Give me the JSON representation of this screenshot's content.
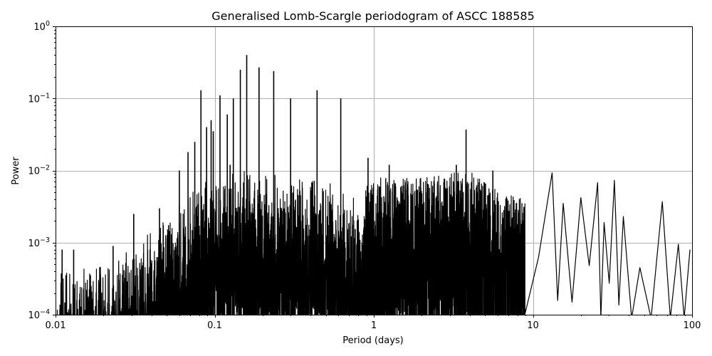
{
  "chart_data": {
    "type": "line",
    "title": "Generalised Lomb-Scargle periodogram of ASCC 188585",
    "xlabel": "Period (days)",
    "ylabel": "Power",
    "xscale": "log",
    "yscale": "log",
    "xlim": [
      0.01,
      100
    ],
    "ylim": [
      0.0001,
      1
    ],
    "grid": true,
    "legend": null,
    "line_color": "#000000",
    "grid_color": "#b0b0b0",
    "x_ticks": [
      {
        "value": 0.01,
        "label": "0.01"
      },
      {
        "value": 0.1,
        "label": "0.1"
      },
      {
        "value": 1,
        "label": "1"
      },
      {
        "value": 10,
        "label": "10"
      },
      {
        "value": 100,
        "label": "100"
      }
    ],
    "y_ticks": [
      {
        "value": 1,
        "base": "10",
        "exp": "0"
      },
      {
        "value": 0.1,
        "base": "10",
        "exp": "−1"
      },
      {
        "value": 0.01,
        "base": "10",
        "exp": "−2"
      },
      {
        "value": 0.001,
        "base": "10",
        "exp": "−3"
      },
      {
        "value": 0.0001,
        "base": "10",
        "exp": "−4"
      }
    ],
    "prominent_peaks": [
      {
        "period": 0.011,
        "power": 0.0008
      },
      {
        "period": 0.013,
        "power": 0.0008
      },
      {
        "period": 0.023,
        "power": 0.0009
      },
      {
        "period": 0.031,
        "power": 0.0025
      },
      {
        "period": 0.045,
        "power": 0.003
      },
      {
        "period": 0.06,
        "power": 0.01
      },
      {
        "period": 0.068,
        "power": 0.018
      },
      {
        "period": 0.075,
        "power": 0.025
      },
      {
        "period": 0.082,
        "power": 0.13
      },
      {
        "period": 0.089,
        "power": 0.04
      },
      {
        "period": 0.095,
        "power": 0.05
      },
      {
        "period": 0.098,
        "power": 0.035
      },
      {
        "period": 0.108,
        "power": 0.11
      },
      {
        "period": 0.12,
        "power": 0.06
      },
      {
        "period": 0.125,
        "power": 0.012
      },
      {
        "period": 0.131,
        "power": 0.1
      },
      {
        "period": 0.145,
        "power": 0.25
      },
      {
        "period": 0.159,
        "power": 0.4
      },
      {
        "period": 0.19,
        "power": 0.27
      },
      {
        "period": 0.235,
        "power": 0.24
      },
      {
        "period": 0.3,
        "power": 0.1
      },
      {
        "period": 0.44,
        "power": 0.13
      },
      {
        "period": 0.62,
        "power": 0.1
      },
      {
        "period": 0.92,
        "power": 0.015
      },
      {
        "period": 1.25,
        "power": 0.012
      },
      {
        "period": 3.3,
        "power": 0.012
      },
      {
        "period": 3.8,
        "power": 0.037
      },
      {
        "period": 5.6,
        "power": 0.01
      },
      {
        "period": 13.2,
        "power": 0.0093
      },
      {
        "period": 15.5,
        "power": 0.0035
      },
      {
        "period": 20,
        "power": 0.0042
      },
      {
        "period": 25.5,
        "power": 0.0068
      },
      {
        "period": 28,
        "power": 0.0019
      },
      {
        "period": 32.5,
        "power": 0.0073
      },
      {
        "period": 37,
        "power": 0.0023
      },
      {
        "period": 47,
        "power": 0.00045
      },
      {
        "period": 65,
        "power": 0.0037
      },
      {
        "period": 82,
        "power": 0.00095
      },
      {
        "period": 97,
        "power": 0.0008
      }
    ]
  }
}
